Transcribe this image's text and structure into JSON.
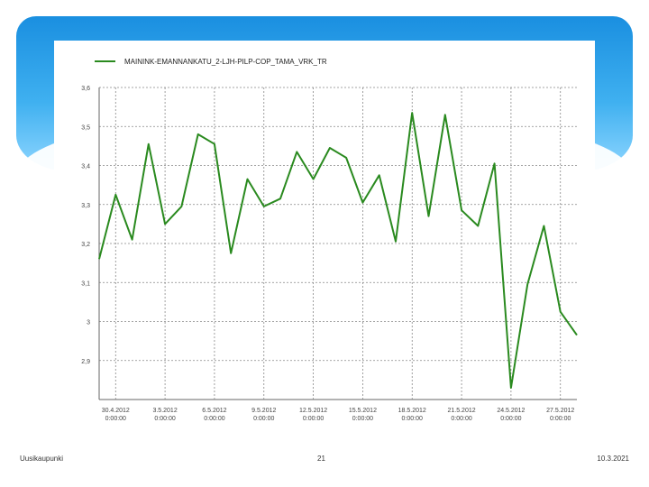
{
  "footer": {
    "left": "Uusikaupunki",
    "center": "21",
    "right": "10.3.2021"
  },
  "colors": {
    "line": "#2a8a1f",
    "grid": "#888888",
    "accent": "#1a8fe0"
  },
  "chart_data": {
    "type": "line",
    "legend": {
      "label": "MAININK-EMANNANKATU_2-LJH-PILP-COP_TAMA_VRK_TR",
      "placement": "top-left"
    },
    "ylim": [
      2.8,
      3.6
    ],
    "yticks": [
      2.9,
      3.0,
      3.1,
      3.2,
      3.3,
      3.4,
      3.5,
      3.6
    ],
    "ytick_labels": [
      "2,9",
      "3",
      "3,1",
      "3,2",
      "3,3",
      "3,4",
      "3,5",
      "3,6"
    ],
    "xlim": [
      0,
      29
    ],
    "xticks": [
      {
        "x": 1,
        "date": "30.4.2012",
        "time": "0:00:00"
      },
      {
        "x": 4,
        "date": "3.5.2012",
        "time": "0:00:00"
      },
      {
        "x": 7,
        "date": "6.5.2012",
        "time": "0:00:00"
      },
      {
        "x": 10,
        "date": "9.5.2012",
        "time": "0:00:00"
      },
      {
        "x": 13,
        "date": "12.5.2012",
        "time": "0:00:00"
      },
      {
        "x": 16,
        "date": "15.5.2012",
        "time": "0:00:00"
      },
      {
        "x": 19,
        "date": "18.5.2012",
        "time": "0:00:00"
      },
      {
        "x": 22,
        "date": "21.5.2012",
        "time": "0:00:00"
      },
      {
        "x": 25,
        "date": "24.5.2012",
        "time": "0:00:00"
      },
      {
        "x": 28,
        "date": "27.5.2012",
        "time": "0:00:00"
      }
    ],
    "series": [
      {
        "name": "MAININK-EMANNANKATU_2-LJH-PILP-COP_TAMA_VRK_TR",
        "x": [
          0,
          1,
          2,
          3,
          4,
          5,
          6,
          7,
          8,
          9,
          10,
          11,
          12,
          13,
          14,
          15,
          16,
          17,
          18,
          19,
          20,
          21,
          22,
          23,
          24,
          25,
          26,
          27,
          28,
          29
        ],
        "y": [
          3.16,
          3.325,
          3.21,
          3.455,
          3.25,
          3.295,
          3.48,
          3.455,
          3.175,
          3.365,
          3.295,
          3.315,
          3.435,
          3.365,
          3.445,
          3.42,
          3.305,
          3.375,
          3.205,
          3.535,
          3.27,
          3.53,
          3.285,
          3.245,
          3.405,
          2.83,
          3.095,
          3.245,
          3.025,
          2.965
        ]
      }
    ],
    "grid": true
  }
}
